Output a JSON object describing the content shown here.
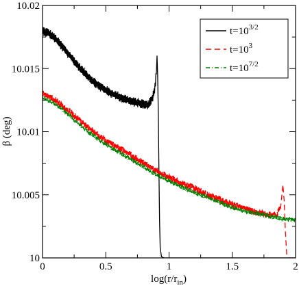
{
  "chart_data": {
    "type": "line",
    "title": "",
    "xlabel_main": "log(r/r",
    "xlabel_sub": "in",
    "xlabel_close": ")",
    "ylabel_main": "β (deg)",
    "xlim": [
      0,
      2
    ],
    "ylim": [
      10,
      10.02
    ],
    "x_ticks": [
      {
        "value": 0,
        "label": "0"
      },
      {
        "value": 0.5,
        "label": "0.5"
      },
      {
        "value": 1,
        "label": "1"
      },
      {
        "value": 1.5,
        "label": "1.5"
      },
      {
        "value": 2,
        "label": "2"
      }
    ],
    "y_ticks": [
      {
        "value": 10,
        "label": "10"
      },
      {
        "value": 10.005,
        "label": "10.005"
      },
      {
        "value": 10.01,
        "label": "10.01"
      },
      {
        "value": 10.015,
        "label": "10.015"
      },
      {
        "value": 10.02,
        "label": "10.02"
      }
    ],
    "x_minor_step": 0.25,
    "y_minor_step": 0.0025,
    "grid": false,
    "legend_position": "top-right",
    "series": [
      {
        "name_base": "t=10",
        "name_exp": "3/2",
        "color": "#000000",
        "dash": "solid",
        "points": [
          [
            0.0,
            10.018
          ],
          [
            0.05,
            10.0178
          ],
          [
            0.1,
            10.0174
          ],
          [
            0.15,
            10.0168
          ],
          [
            0.2,
            10.0162
          ],
          [
            0.25,
            10.0156
          ],
          [
            0.3,
            10.015
          ],
          [
            0.35,
            10.0145
          ],
          [
            0.4,
            10.014
          ],
          [
            0.45,
            10.0136
          ],
          [
            0.5,
            10.0133
          ],
          [
            0.55,
            10.013
          ],
          [
            0.6,
            10.0128
          ],
          [
            0.65,
            10.0126
          ],
          [
            0.7,
            10.0124
          ],
          [
            0.75,
            10.0123
          ],
          [
            0.8,
            10.0122
          ],
          [
            0.83,
            10.0121
          ],
          [
            0.85,
            10.0124
          ],
          [
            0.87,
            10.0127
          ],
          [
            0.88,
            10.0131
          ],
          [
            0.89,
            10.0136
          ],
          [
            0.9,
            10.0148
          ],
          [
            0.905,
            10.016
          ],
          [
            0.91,
            10.0145
          ],
          [
            0.915,
            10.0115
          ],
          [
            0.92,
            10.007
          ],
          [
            0.925,
            10.003
          ],
          [
            0.93,
            10.0008
          ],
          [
            0.94,
            10.0001
          ],
          [
            0.96,
            10.0
          ],
          [
            1.0,
            10.0
          ],
          [
            1.2,
            10.0
          ],
          [
            1.5,
            10.0
          ],
          [
            2.0,
            10.0
          ]
        ],
        "noise_until": 0.9,
        "noise_amp": 0.00035
      },
      {
        "name_base": "t=10",
        "name_exp": "3",
        "color": "#ff0000",
        "dash": "8,5",
        "points": [
          [
            0.0,
            10.013
          ],
          [
            0.1,
            10.0125
          ],
          [
            0.2,
            10.0117
          ],
          [
            0.3,
            10.0108
          ],
          [
            0.4,
            10.01
          ],
          [
            0.5,
            10.0093
          ],
          [
            0.6,
            10.0087
          ],
          [
            0.7,
            10.0081
          ],
          [
            0.8,
            10.0075
          ],
          [
            0.9,
            10.0069
          ],
          [
            1.0,
            10.0064
          ],
          [
            1.1,
            10.0059
          ],
          [
            1.2,
            10.0055
          ],
          [
            1.3,
            10.005
          ],
          [
            1.4,
            10.0046
          ],
          [
            1.5,
            10.0042
          ],
          [
            1.6,
            10.0039
          ],
          [
            1.7,
            10.0036
          ],
          [
            1.8,
            10.0034
          ],
          [
            1.85,
            10.0034
          ],
          [
            1.88,
            10.004
          ],
          [
            1.9,
            10.0058
          ],
          [
            1.91,
            10.0045
          ],
          [
            1.92,
            10.002
          ],
          [
            1.93,
            10.0003
          ],
          [
            1.94,
            10.0
          ],
          [
            2.0,
            10.0
          ]
        ],
        "noise_until": 1.88,
        "noise_amp": 0.00028
      },
      {
        "name_base": "t=10",
        "name_exp": "7/2",
        "color": "#008000",
        "dash": "6,3,1,3",
        "points": [
          [
            0.0,
            10.0127
          ],
          [
            0.1,
            10.0122
          ],
          [
            0.2,
            10.0114
          ],
          [
            0.3,
            10.0105
          ],
          [
            0.4,
            10.0097
          ],
          [
            0.5,
            10.009
          ],
          [
            0.6,
            10.0084
          ],
          [
            0.7,
            10.0078
          ],
          [
            0.8,
            10.0072
          ],
          [
            0.9,
            10.0066
          ],
          [
            1.0,
            10.0061
          ],
          [
            1.1,
            10.0056
          ],
          [
            1.2,
            10.0052
          ],
          [
            1.3,
            10.0048
          ],
          [
            1.4,
            10.0044
          ],
          [
            1.5,
            10.004
          ],
          [
            1.6,
            10.0037
          ],
          [
            1.7,
            10.0035
          ],
          [
            1.8,
            10.0033
          ],
          [
            1.9,
            10.0031
          ],
          [
            2.0,
            10.003
          ]
        ],
        "noise_until": 2.0,
        "noise_amp": 0.00018
      }
    ]
  }
}
